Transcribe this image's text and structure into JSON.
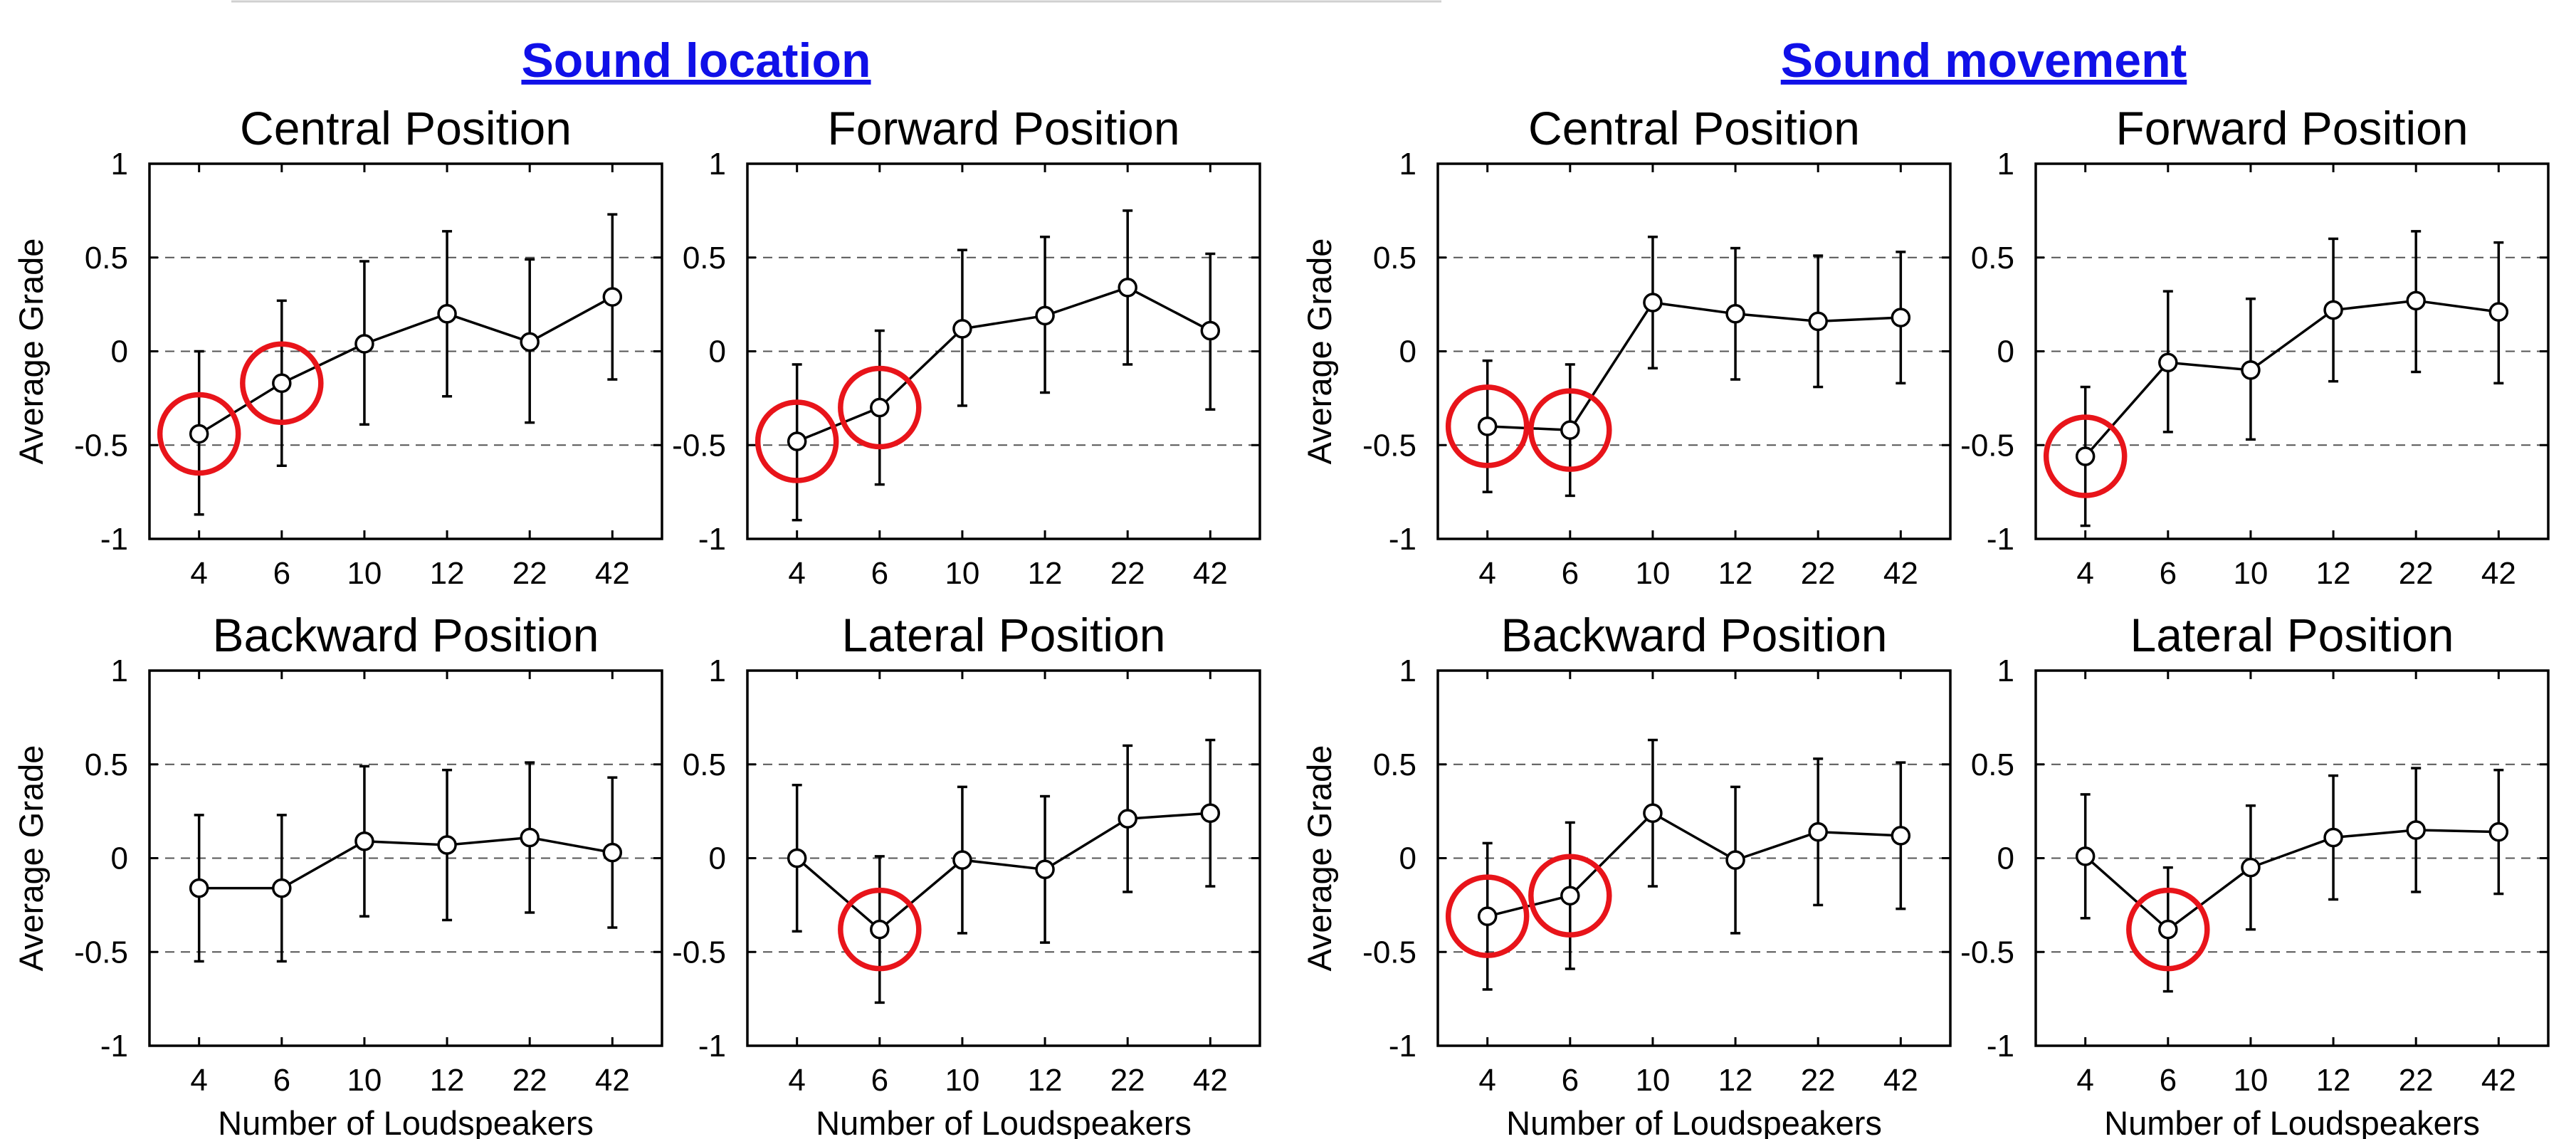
{
  "groups": [
    "Sound location",
    "Sound movement"
  ],
  "chart_data": [
    {
      "type": "line",
      "group": "Sound location",
      "title": "Central Position",
      "xlabel": "Number of Loudspeakers",
      "ylabel": "Average Grade",
      "categories": [
        "4",
        "6",
        "10",
        "12",
        "22",
        "42"
      ],
      "ylim": [
        -1,
        1
      ],
      "yticks": [
        "1",
        "0.5",
        "0",
        "-0.5",
        "-1"
      ],
      "grid": "dashed horizontal at 0.5, 0, -0.5",
      "series": [
        {
          "values": [
            -0.44,
            -0.17,
            0.04,
            0.2,
            0.05,
            0.29
          ],
          "error_low": [
            -0.87,
            -0.61,
            -0.39,
            -0.24,
            -0.38,
            -0.15
          ],
          "error_high": [
            0.0,
            0.27,
            0.48,
            0.64,
            0.49,
            0.73
          ]
        }
      ],
      "highlighted_categories": [
        "4",
        "6"
      ]
    },
    {
      "type": "line",
      "group": "Sound location",
      "title": "Forward Position",
      "xlabel": "Number of Loudspeakers",
      "ylabel": "Average Grade",
      "categories": [
        "4",
        "6",
        "10",
        "12",
        "22",
        "42"
      ],
      "ylim": [
        -1,
        1
      ],
      "yticks": [
        "1",
        "0.5",
        "0",
        "-0.5",
        "-1"
      ],
      "grid": "dashed horizontal at 0.5, 0, -0.5",
      "series": [
        {
          "values": [
            -0.48,
            -0.3,
            0.12,
            0.19,
            0.34,
            0.11
          ],
          "error_low": [
            -0.9,
            -0.71,
            -0.29,
            -0.22,
            -0.07,
            -0.31
          ],
          "error_high": [
            -0.07,
            0.11,
            0.54,
            0.61,
            0.75,
            0.52
          ]
        }
      ],
      "highlighted_categories": [
        "4",
        "6"
      ]
    },
    {
      "type": "line",
      "group": "Sound movement",
      "title": "Central Position",
      "xlabel": "Number of Loudspeakers",
      "ylabel": "Average Grade",
      "categories": [
        "4",
        "6",
        "10",
        "12",
        "22",
        "42"
      ],
      "ylim": [
        -1,
        1
      ],
      "yticks": [
        "1",
        "0.5",
        "0",
        "-0.5",
        "-1"
      ],
      "grid": "dashed horizontal at 0.5, 0, -0.5",
      "series": [
        {
          "values": [
            -0.4,
            -0.42,
            0.26,
            0.2,
            0.16,
            0.18
          ],
          "error_low": [
            -0.75,
            -0.77,
            -0.09,
            -0.15,
            -0.19,
            -0.17
          ],
          "error_high": [
            -0.05,
            -0.07,
            0.61,
            0.55,
            0.51,
            0.53
          ]
        }
      ],
      "highlighted_categories": [
        "4",
        "6"
      ]
    },
    {
      "type": "line",
      "group": "Sound movement",
      "title": "Forward Position",
      "xlabel": "Number of Loudspeakers",
      "ylabel": "Average Grade",
      "categories": [
        "4",
        "6",
        "10",
        "12",
        "22",
        "42"
      ],
      "ylim": [
        -1,
        1
      ],
      "yticks": [
        "1",
        "0.5",
        "0",
        "-0.5",
        "-1"
      ],
      "grid": "dashed horizontal at 0.5, 0, -0.5",
      "series": [
        {
          "values": [
            -0.56,
            -0.06,
            -0.1,
            0.22,
            0.27,
            0.21
          ],
          "error_low": [
            -0.93,
            -0.43,
            -0.47,
            -0.16,
            -0.11,
            -0.17
          ],
          "error_high": [
            -0.19,
            0.32,
            0.28,
            0.6,
            0.64,
            0.58
          ]
        }
      ],
      "highlighted_categories": [
        "4"
      ]
    },
    {
      "type": "line",
      "group": "Sound location",
      "title": "Backward Position",
      "xlabel": "Number of Loudspeakers",
      "ylabel": "Average Grade",
      "categories": [
        "4",
        "6",
        "10",
        "12",
        "22",
        "42"
      ],
      "ylim": [
        -1,
        1
      ],
      "yticks": [
        "1",
        "0.5",
        "0",
        "-0.5",
        "-1"
      ],
      "grid": "dashed horizontal at 0.5, 0, -0.5",
      "series": [
        {
          "values": [
            -0.16,
            -0.16,
            0.09,
            0.07,
            0.11,
            0.03
          ],
          "error_low": [
            -0.55,
            -0.55,
            -0.31,
            -0.33,
            -0.29,
            -0.37
          ],
          "error_high": [
            0.23,
            0.23,
            0.49,
            0.47,
            0.51,
            0.43
          ]
        }
      ],
      "highlighted_categories": []
    },
    {
      "type": "line",
      "group": "Sound location",
      "title": "Lateral Position",
      "xlabel": "Number of Loudspeakers",
      "ylabel": "Average Grade",
      "categories": [
        "4",
        "6",
        "10",
        "12",
        "22",
        "42"
      ],
      "ylim": [
        -1,
        1
      ],
      "yticks": [
        "1",
        "0.5",
        "0",
        "-0.5",
        "-1"
      ],
      "grid": "dashed horizontal at 0.5, 0, -0.5",
      "series": [
        {
          "values": [
            0.0,
            -0.38,
            -0.01,
            -0.06,
            0.21,
            0.24
          ],
          "error_low": [
            -0.39,
            -0.77,
            -0.4,
            -0.45,
            -0.18,
            -0.15
          ],
          "error_high": [
            0.39,
            0.01,
            0.38,
            0.33,
            0.6,
            0.63
          ]
        }
      ],
      "highlighted_categories": [
        "6"
      ]
    },
    {
      "type": "line",
      "group": "Sound movement",
      "title": "Backward Position",
      "xlabel": "Number of Loudspeakers",
      "ylabel": "Average Grade",
      "categories": [
        "4",
        "6",
        "10",
        "12",
        "22",
        "42"
      ],
      "ylim": [
        -1,
        1
      ],
      "yticks": [
        "1",
        "0.5",
        "0",
        "-0.5",
        "-1"
      ],
      "grid": "dashed horizontal at 0.5, 0, -0.5",
      "series": [
        {
          "values": [
            -0.31,
            -0.2,
            0.24,
            -0.01,
            0.14,
            0.12
          ],
          "error_low": [
            -0.7,
            -0.59,
            -0.15,
            -0.4,
            -0.25,
            -0.27
          ],
          "error_high": [
            0.08,
            0.19,
            0.63,
            0.38,
            0.53,
            0.51
          ]
        }
      ],
      "highlighted_categories": [
        "4",
        "6"
      ]
    },
    {
      "type": "line",
      "group": "Sound movement",
      "title": "Lateral Position",
      "xlabel": "Number of Loudspeakers",
      "ylabel": "Average Grade",
      "categories": [
        "4",
        "6",
        "10",
        "12",
        "22",
        "42"
      ],
      "ylim": [
        -1,
        1
      ],
      "yticks": [
        "1",
        "0.5",
        "0",
        "-0.5",
        "-1"
      ],
      "grid": "dashed horizontal at 0.5, 0, -0.5",
      "series": [
        {
          "values": [
            0.01,
            -0.38,
            -0.05,
            0.11,
            0.15,
            0.14
          ],
          "error_low": [
            -0.32,
            -0.71,
            -0.38,
            -0.22,
            -0.18,
            -0.19
          ],
          "error_high": [
            0.34,
            -0.05,
            0.28,
            0.44,
            0.48,
            0.47
          ]
        }
      ],
      "highlighted_categories": [
        "6"
      ]
    }
  ],
  "colors": {
    "highlight": "#e8141a",
    "group_title": "#1010e8",
    "line": "#000000",
    "grid": "#555555"
  }
}
